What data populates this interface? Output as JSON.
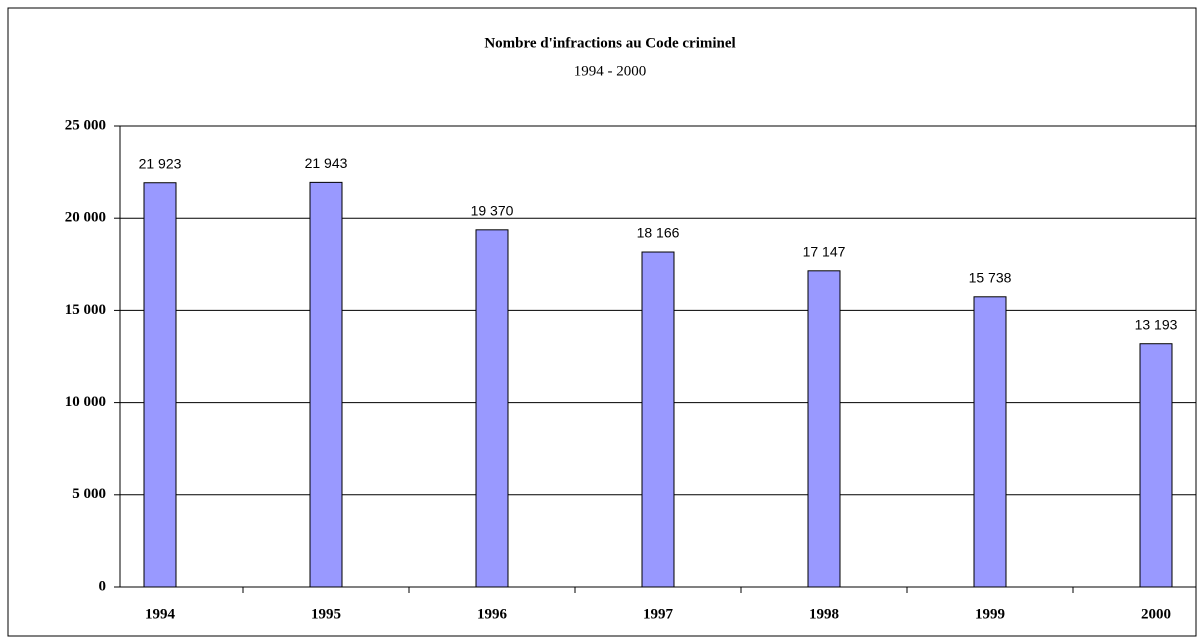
{
  "chart_data": {
    "type": "bar",
    "title": "Nombre d'infractions au Code criminel",
    "subtitle": "1994 - 2000",
    "categories": [
      "1994",
      "1995",
      "1996",
      "1997",
      "1998",
      "1999",
      "2000"
    ],
    "values": [
      21923,
      21943,
      19370,
      18166,
      17147,
      15738,
      13193
    ],
    "value_labels": [
      "21 923",
      "21 943",
      "19 370",
      "18 166",
      "17 147",
      "15 738",
      "13 193"
    ],
    "color": "#9999ff",
    "ylim": [
      0,
      25000
    ],
    "yticks": [
      0,
      {
        "value": 5000,
        "label": "5 000"
      },
      {
        "value": 10000,
        "label": "10 000"
      },
      {
        "value": 15000,
        "label": "15 000"
      },
      {
        "value": 20000,
        "label": "20 000"
      },
      {
        "value": 25000,
        "label": "25 000"
      }
    ],
    "grid": true
  }
}
